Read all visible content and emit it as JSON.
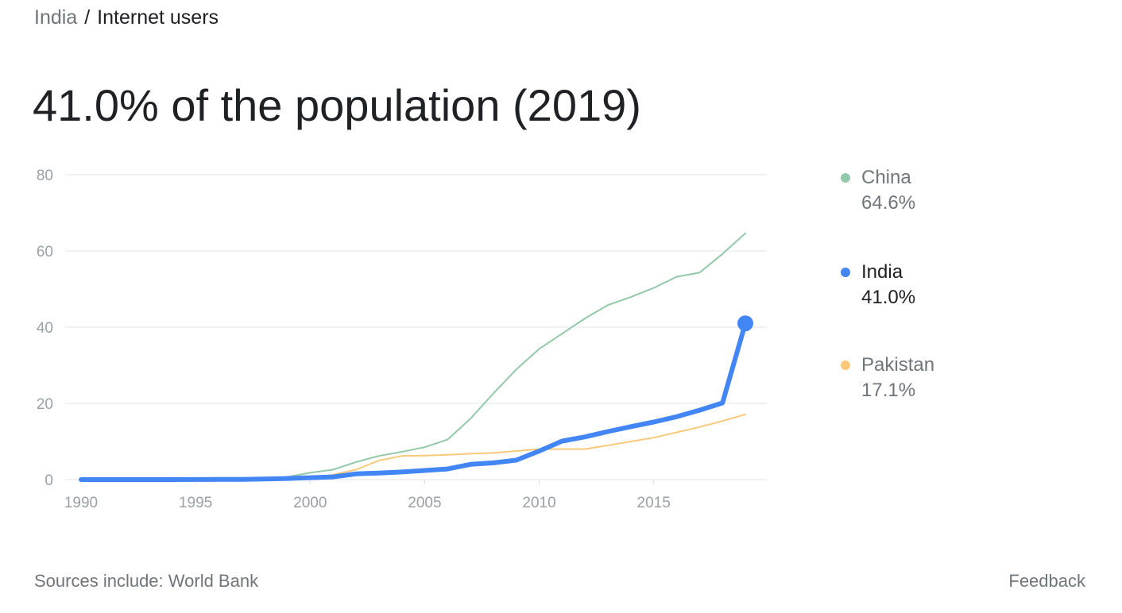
{
  "breadcrumb": {
    "country": "India",
    "separator": "/",
    "topic": "Internet users"
  },
  "headline": "41.0% of the population (2019)",
  "footer": {
    "source": "Sources include: World Bank",
    "feedback": "Feedback"
  },
  "chart_data": {
    "type": "line",
    "x": [
      1990,
      1991,
      1992,
      1993,
      1994,
      1995,
      1996,
      1997,
      1998,
      1999,
      2000,
      2001,
      2002,
      2003,
      2004,
      2005,
      2006,
      2007,
      2008,
      2009,
      2010,
      2011,
      2012,
      2013,
      2014,
      2015,
      2016,
      2017,
      2018,
      2019
    ],
    "ylim": [
      0,
      80
    ],
    "yticks": [
      "0",
      "20",
      "40",
      "60",
      "80"
    ],
    "xticks": [
      "1990",
      "1995",
      "2000",
      "2005",
      "2010",
      "2015"
    ],
    "grid": true,
    "legend_position": "right",
    "series": [
      {
        "name": "China",
        "latest": "64.6%",
        "color": "#93c8a9",
        "values": [
          0,
          0,
          0,
          0,
          0,
          0,
          0.05,
          0.05,
          0.2,
          0.7,
          1.8,
          2.6,
          4.6,
          6.2,
          7.3,
          8.5,
          10.5,
          16,
          22.6,
          28.9,
          34.3,
          38.3,
          42.3,
          45.8,
          47.9,
          50.3,
          53.2,
          54.3,
          59.2,
          64.6
        ]
      },
      {
        "name": "India",
        "latest": "41.0%",
        "color": "#4285f4",
        "values": [
          0,
          0,
          0,
          0,
          0,
          0.03,
          0.05,
          0.07,
          0.14,
          0.3,
          0.5,
          0.7,
          1.5,
          1.7,
          2.0,
          2.4,
          2.8,
          4.0,
          4.4,
          5.1,
          7.5,
          10.1,
          11.2,
          12.6,
          13.9,
          15.1,
          16.5,
          18.2,
          20.1,
          41.0
        ]
      },
      {
        "name": "Pakistan",
        "latest": "17.1%",
        "color": "#f8c97a",
        "values": [
          0,
          0,
          0,
          0,
          0,
          0,
          0,
          0,
          0,
          0.04,
          0.2,
          1.3,
          2.6,
          5.0,
          6.2,
          6.3,
          6.5,
          6.8,
          7.0,
          7.5,
          8.0,
          8.0,
          8.0,
          9.0,
          10.0,
          11.0,
          12.4,
          13.8,
          15.4,
          17.1
        ]
      }
    ]
  }
}
